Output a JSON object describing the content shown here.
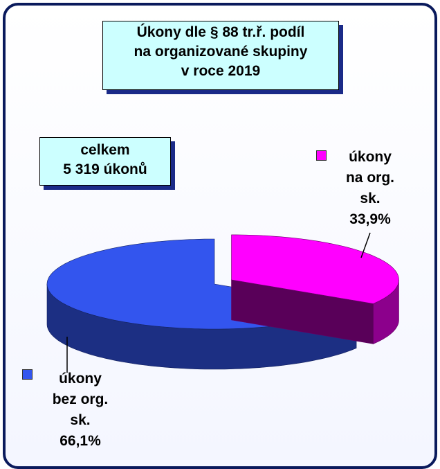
{
  "chart_data": {
    "type": "pie3d",
    "title": [
      "Úkony dle § 88 tr.ř.  podíl",
      "na organizované skupiny",
      "v roce 2019"
    ],
    "annotation": [
      "celkem",
      "5 319 úkonů"
    ],
    "categories": [
      "úkony na org. sk.",
      "úkony bez org. sk."
    ],
    "values": [
      33.9,
      66.1
    ],
    "value_labels": [
      "33,9%",
      "66,1%"
    ],
    "colors": [
      "#ff00ff",
      "#3355ee"
    ]
  }
}
